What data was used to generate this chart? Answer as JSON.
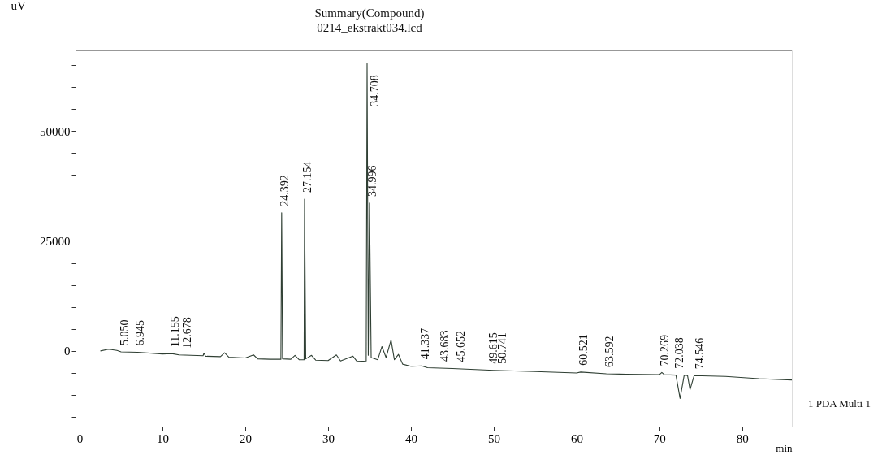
{
  "chart_data": {
    "type": "line",
    "title": "Summary(Compound)",
    "subtitle": "0214_ekstrakt034.lcd",
    "xlabel": "min",
    "ylabel": "uV",
    "series": [
      {
        "color": "#2f3f33",
        "x": [
          2.5,
          3.5,
          4.5,
          5,
          7,
          10,
          11.1,
          12,
          14.9,
          15,
          15.2,
          17,
          17.5,
          18,
          20,
          21,
          21.5,
          23,
          24.3,
          24.392,
          24.5,
          25.5,
          26,
          26.5,
          27.1,
          27.154,
          27.3,
          28,
          28.5,
          30,
          31,
          31.5,
          33,
          33.5,
          34.6,
          34.708,
          34.85,
          34.996,
          35.2,
          36,
          36.5,
          37,
          37.6,
          38,
          38.5,
          39,
          40,
          41.3,
          42,
          45,
          50,
          55,
          60,
          60.5,
          63.6,
          66,
          70,
          70.3,
          70.6,
          72,
          72.5,
          73,
          73.4,
          73.7,
          74.2,
          78,
          82,
          86
        ],
        "values": [
          0,
          400,
          100,
          -200,
          -300,
          -700,
          -600,
          -900,
          -1100,
          -500,
          -1200,
          -1300,
          -400,
          -1400,
          -1600,
          -900,
          -1800,
          -1900,
          -1900,
          31400,
          -1800,
          -1900,
          -1000,
          -2000,
          -2000,
          34500,
          -1800,
          -1000,
          -2100,
          -2200,
          -900,
          -2300,
          -1200,
          -2400,
          -2300,
          65300,
          -1000,
          33600,
          -1500,
          -2000,
          1000,
          -1500,
          2500,
          -2000,
          -800,
          -3000,
          -3500,
          -3400,
          -3800,
          -4000,
          -4400,
          -4700,
          -5000,
          -4800,
          -5200,
          -5300,
          -5400,
          -4900,
          -5400,
          -5500,
          -10800,
          -5500,
          -5600,
          -8800,
          -5600,
          -5800,
          -6300,
          -6600
        ]
      }
    ],
    "xlim": [
      -0.5,
      86
    ],
    "ylim": [
      -17200,
      68300
    ],
    "xticks": [
      0,
      10,
      20,
      30,
      40,
      50,
      60,
      70,
      80
    ],
    "yticks": [
      {
        "value": -15000,
        "label": null
      },
      {
        "value": -10000,
        "label": null
      },
      {
        "value": -5000,
        "label": null
      },
      0,
      {
        "value": 5000,
        "label": null
      },
      {
        "value": 10000,
        "label": null
      },
      {
        "value": 15000,
        "label": null
      },
      {
        "value": 20000,
        "label": null
      },
      25000,
      {
        "value": 30000,
        "label": null
      },
      {
        "value": 35000,
        "label": null
      },
      {
        "value": 40000,
        "label": null
      },
      {
        "value": 45000,
        "label": null
      },
      50000,
      {
        "value": 55000,
        "label": null
      },
      {
        "value": 60000,
        "label": null
      },
      {
        "value": 65000,
        "label": null
      }
    ],
    "grid": false,
    "marker": "none",
    "line_style": "solid",
    "annotations": [
      {
        "text": "5.050",
        "x": 5.05,
        "y": -200
      },
      {
        "text": "6.945",
        "x": 6.945,
        "y": -300
      },
      {
        "text": "11.155",
        "x": 11.155,
        "y": -600
      },
      {
        "text": "12.678",
        "x": 12.678,
        "y": -900
      },
      {
        "text": "24.392",
        "x": 24.392,
        "y": 31400
      },
      {
        "text": "27.154",
        "x": 27.154,
        "y": 34500
      },
      {
        "text": "34.708",
        "x": 34.708,
        "y": 65300
      },
      {
        "text": "34.996",
        "x": 34.996,
        "y": 33600
      },
      {
        "text": "41.337",
        "x": 41.337,
        "y": -3400
      },
      {
        "text": "43.683",
        "x": 43.683,
        "y": -3900
      },
      {
        "text": "45.652",
        "x": 45.652,
        "y": -4000
      },
      {
        "text": "49.615",
        "x": 49.615,
        "y": -4400
      },
      {
        "text": "50.741",
        "x": 50.741,
        "y": -4400
      },
      {
        "text": "60.521",
        "x": 60.521,
        "y": -4800
      },
      {
        "text": "63.592",
        "x": 63.592,
        "y": -5200
      },
      {
        "text": "70.269",
        "x": 70.269,
        "y": -4900
      },
      {
        "text": "72.038",
        "x": 72.038,
        "y": -5500
      },
      {
        "text": "74.546",
        "x": 74.546,
        "y": -5600
      },
      "1 PDA Multi 1"
    ]
  }
}
